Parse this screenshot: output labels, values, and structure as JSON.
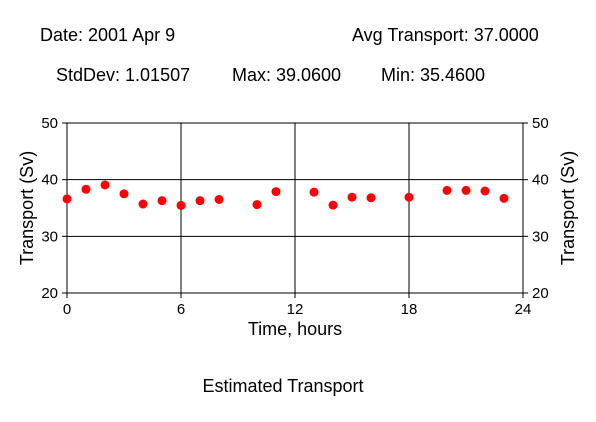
{
  "header": {
    "date": "Date: 2001 Apr 9",
    "avg": "Avg Transport: 37.0000",
    "stddev": "StdDev: 1.01507",
    "max": "Max: 39.0600",
    "min": "Min: 35.4600"
  },
  "caption": "Estimated Transport",
  "colors": {
    "point": "#ff0000",
    "axis": "#000000",
    "background": "#ffffff"
  },
  "chart_data": {
    "type": "scatter",
    "xlabel": "Time, hours",
    "ylabel": "Transport (Sv)",
    "ylabel_right": "Transport (Sv)",
    "xlim": [
      0,
      24
    ],
    "ylim": [
      20,
      50
    ],
    "x_ticks": [
      0,
      6,
      12,
      18,
      24
    ],
    "y_ticks": [
      20,
      30,
      40,
      50
    ],
    "grid": true,
    "series": [
      {
        "x": [
          0,
          1,
          2,
          3,
          4,
          5,
          6,
          7,
          8,
          10,
          11,
          13,
          14,
          15,
          16,
          18,
          20,
          21,
          22,
          23
        ],
        "y": [
          36.6,
          38.3,
          39.06,
          37.5,
          35.7,
          36.3,
          35.46,
          36.3,
          36.5,
          35.6,
          37.9,
          37.8,
          35.5,
          36.9,
          36.8,
          36.9,
          38.1,
          38.1,
          38.0,
          36.7
        ]
      }
    ]
  }
}
